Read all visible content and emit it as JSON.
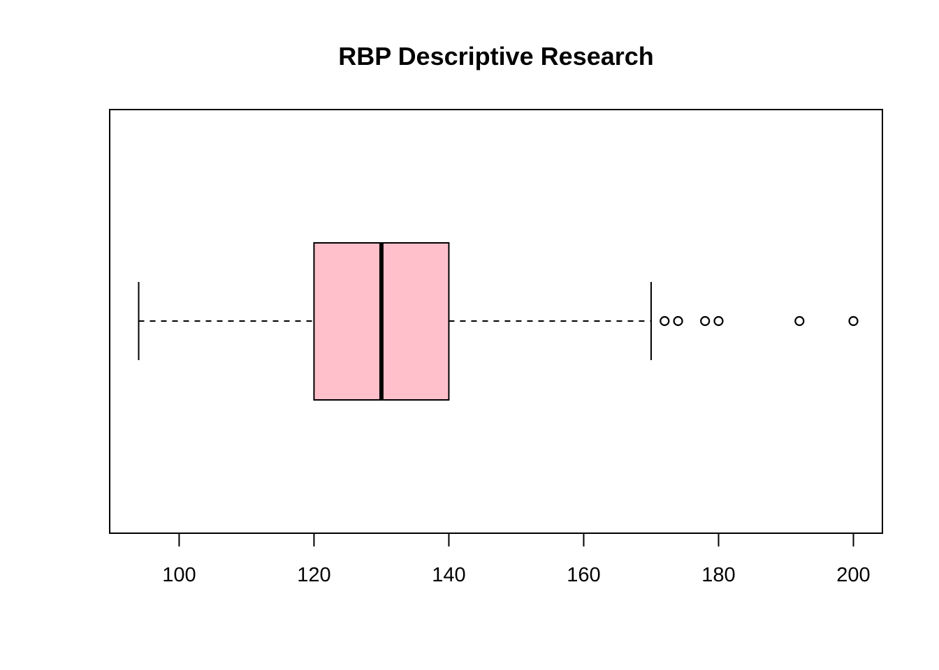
{
  "chart_data": {
    "type": "boxplot",
    "orientation": "horizontal",
    "title": "RBP Descriptive Research",
    "xlabel": "",
    "ylabel": "",
    "xlim": [
      89.7,
      204.3
    ],
    "x_ticks": [
      100,
      120,
      140,
      160,
      180,
      200
    ],
    "x_tick_labels": [
      "100",
      "120",
      "140",
      "160",
      "180",
      "200"
    ],
    "series": [
      {
        "whisker_low": 94,
        "q1": 120,
        "median": 130,
        "q3": 140,
        "whisker_high": 170,
        "outliers": [
          172,
          174,
          178,
          180,
          192,
          200
        ]
      }
    ],
    "box_color": "#ffc0cb",
    "line_color": "#000000",
    "grid": false,
    "legend": "none"
  }
}
